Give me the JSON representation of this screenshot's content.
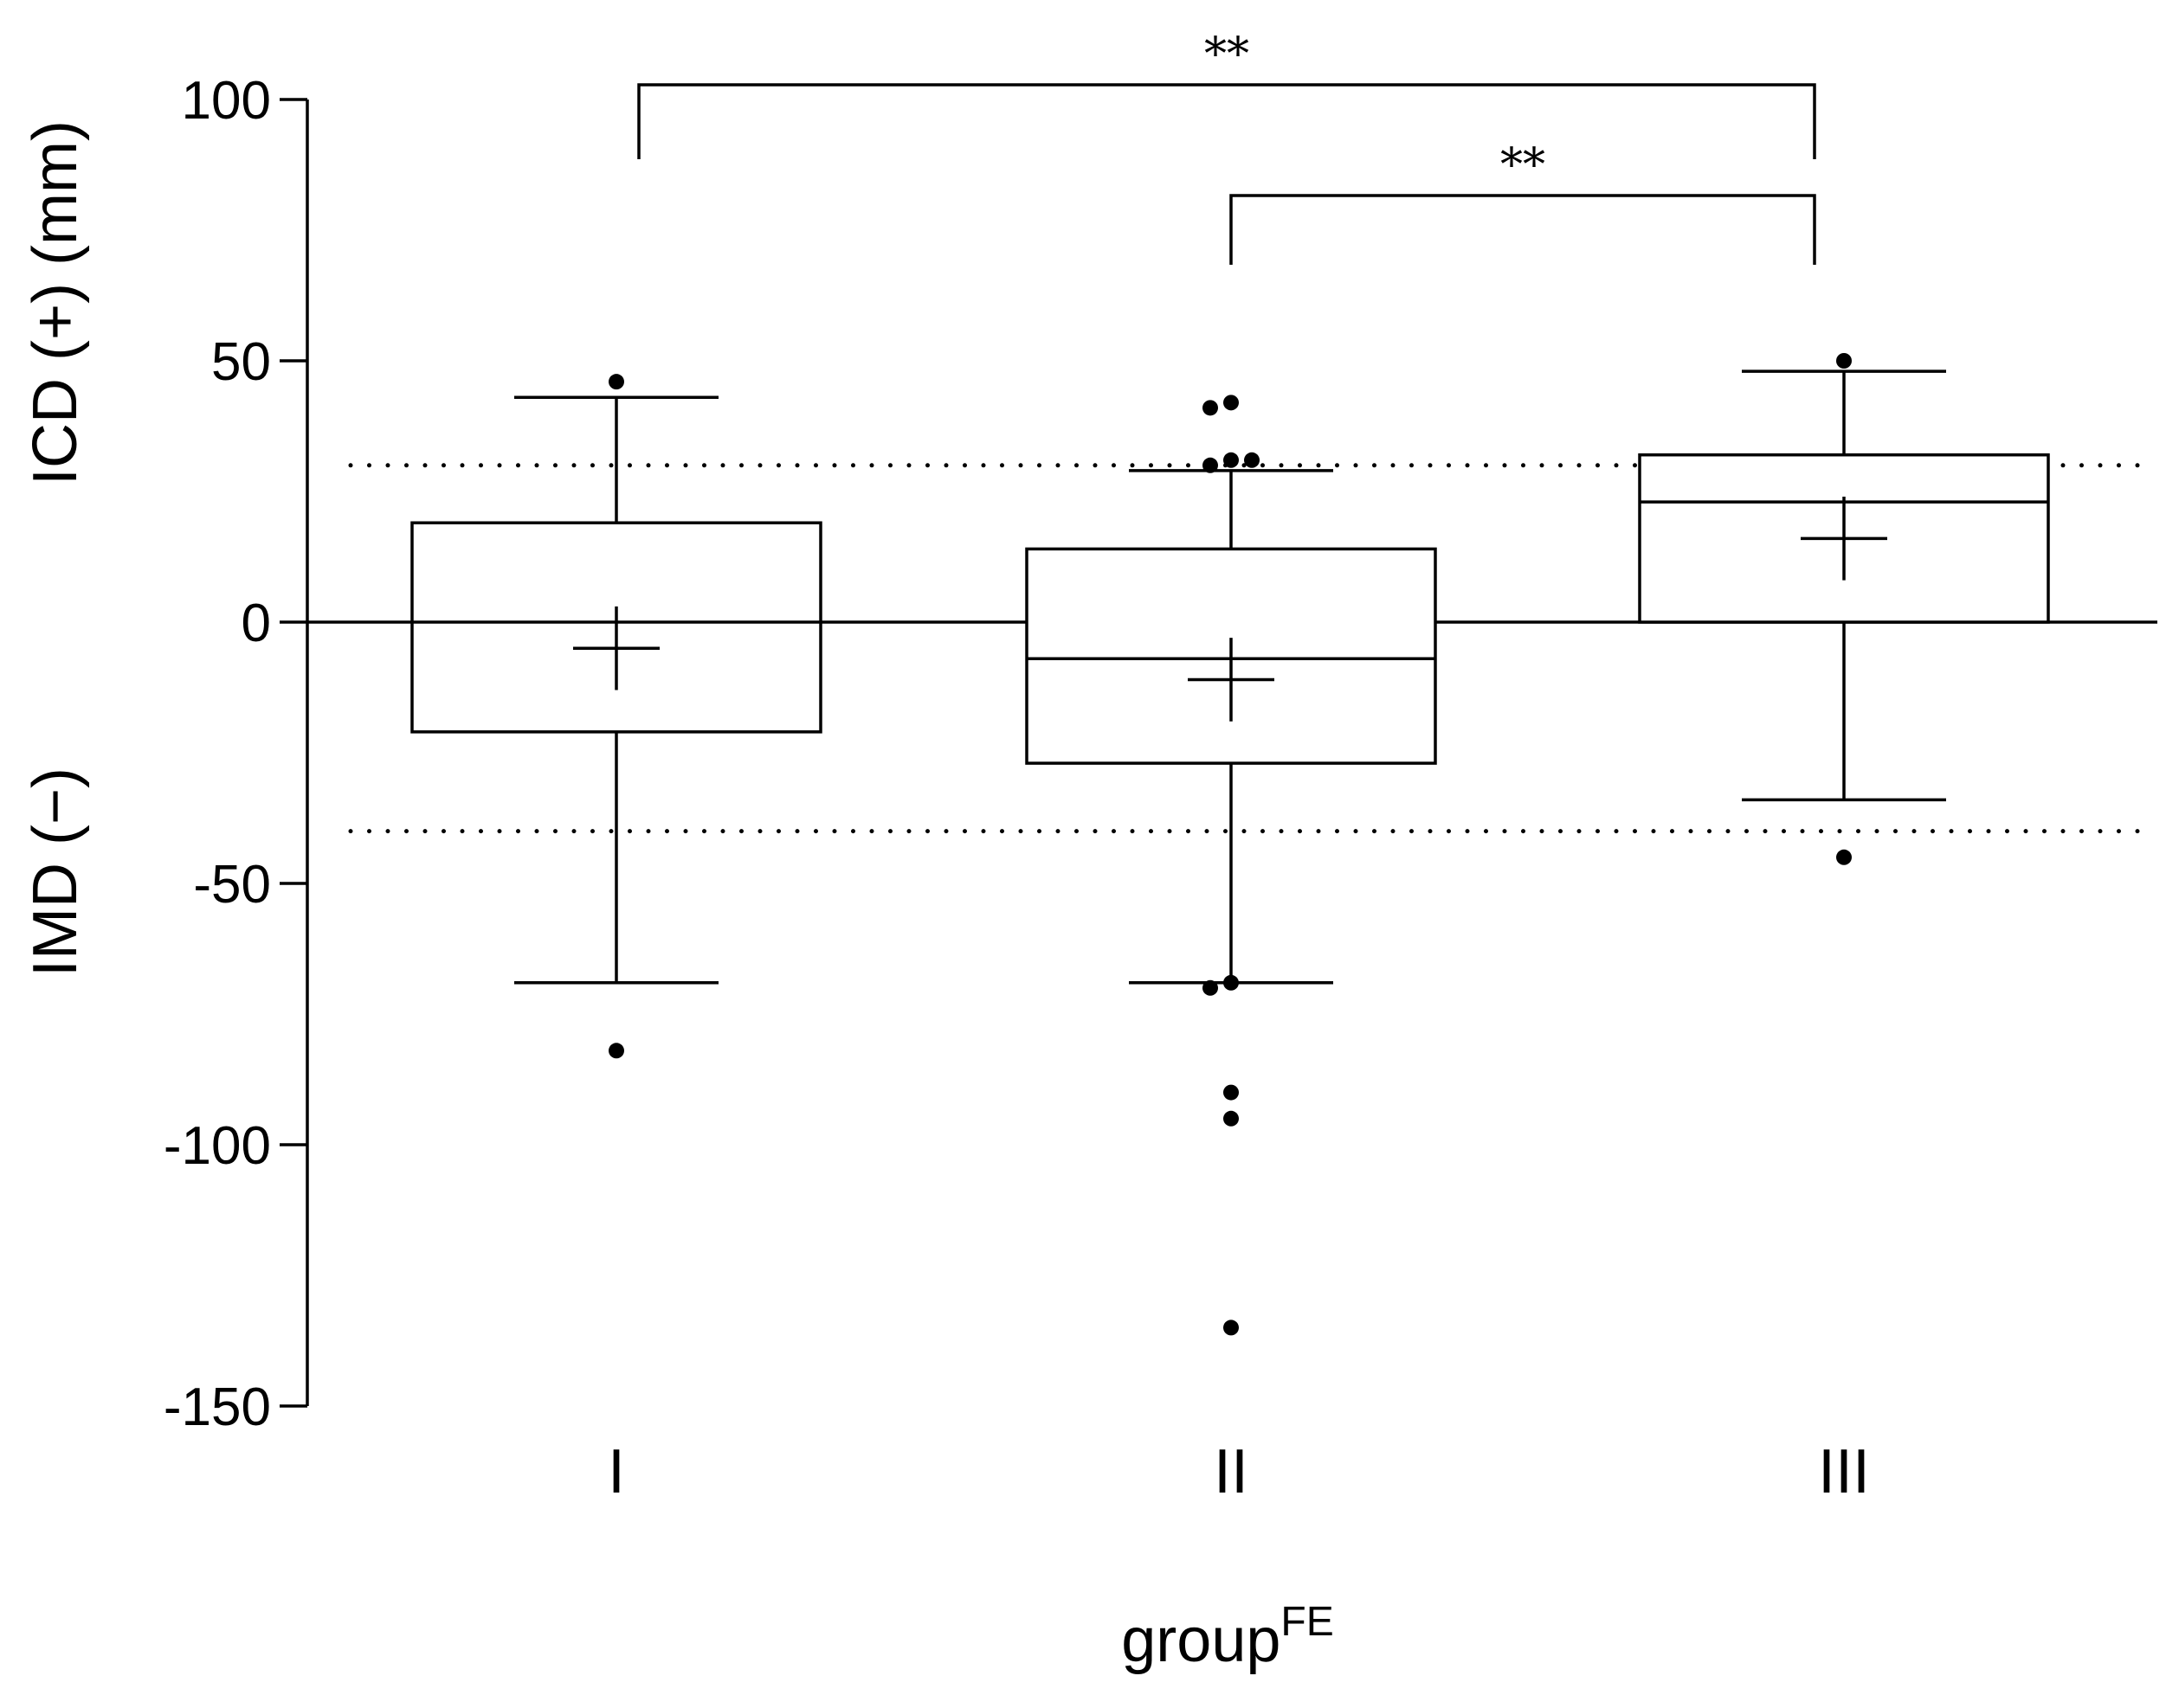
{
  "chart_data": {
    "type": "box",
    "y_axis": {
      "label_top": "ICD (+) (mm)",
      "label_bottom": "IMD (−)",
      "range": [
        -150,
        100
      ],
      "ticks": [
        100,
        50,
        0,
        -50,
        -100,
        -150
      ],
      "tick_labels": [
        "100",
        "50",
        "0",
        "-50",
        "-100",
        "-150"
      ]
    },
    "x_axis": {
      "label": "group",
      "label_superscript": "FE",
      "categories": [
        "I",
        "II",
        "III"
      ]
    },
    "reference_lines": [
      {
        "y": 0,
        "style": "solid"
      },
      {
        "y": 30,
        "style": "dotted"
      },
      {
        "y": -40,
        "style": "dotted"
      }
    ],
    "boxes": [
      {
        "category": "I",
        "q1": -21,
        "median": 0,
        "q3": 19,
        "whisker_low": -69,
        "whisker_high": 43,
        "mean": -5,
        "mean_ci": [
          -13,
          3
        ],
        "outliers": [
          46,
          -82
        ]
      },
      {
        "category": "II",
        "q1": -27,
        "median": -7,
        "q3": 14,
        "whisker_low": -69,
        "whisker_high": 29,
        "mean": -11,
        "mean_ci": [
          -19,
          -3
        ],
        "outliers": [
          42,
          41,
          31,
          30,
          31,
          -69,
          -70,
          -90,
          -95,
          -135
        ]
      },
      {
        "category": "III",
        "q1": 0,
        "median": 23,
        "q3": 32,
        "whisker_low": -34,
        "whisker_high": 48,
        "mean": 16,
        "mean_ci": [
          8,
          24
        ],
        "outliers": [
          50,
          -45
        ]
      }
    ],
    "significance": [
      {
        "from": "I",
        "to": "III",
        "label": "**"
      },
      {
        "from": "II",
        "to": "III",
        "label": "**"
      }
    ],
    "grid": false,
    "legend": "none"
  }
}
